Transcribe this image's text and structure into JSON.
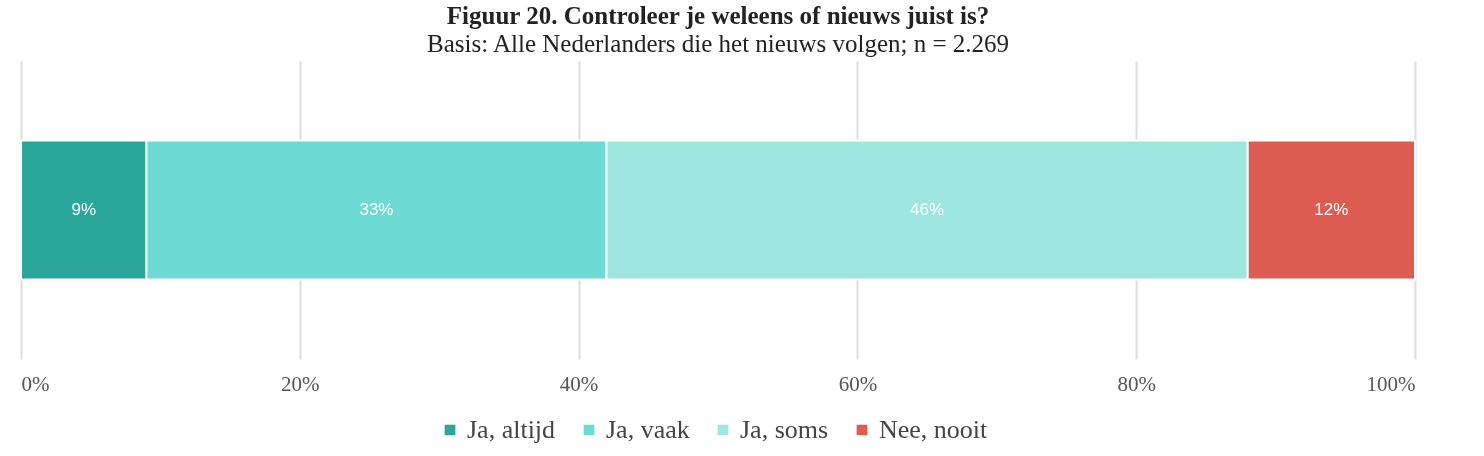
{
  "chart_data": {
    "type": "bar",
    "orientation": "horizontal",
    "stacked": true,
    "title": "Figuur 20. Controleer je weleens of nieuws juist is?",
    "subtitle": "Basis: Alle Nederlanders die het nieuws volgen; n = 2.269",
    "categories": [
      null
    ],
    "series": [
      {
        "name": "Ja, altijd",
        "color": "#2aa69a",
        "values": [
          9
        ]
      },
      {
        "name": "Ja, vaak",
        "color": "#6ddbd3",
        "values": [
          33
        ]
      },
      {
        "name": "Ja, soms",
        "color": "#9ee6e0",
        "values": [
          46
        ]
      },
      {
        "name": "Nee, nooit",
        "color": "#dd5c52",
        "values": [
          12
        ]
      }
    ],
    "value_labels": [
      "9%",
      "33%",
      "46%",
      "12%"
    ],
    "xlim": [
      0,
      100
    ],
    "xticks": [
      {
        "value": 0,
        "label": "0%"
      },
      {
        "value": 20,
        "label": "20%"
      },
      {
        "value": 40,
        "label": "40%"
      },
      {
        "value": 60,
        "label": "60%"
      },
      {
        "value": 80,
        "label": "80%"
      },
      {
        "value": 100,
        "label": "100%"
      }
    ],
    "grid": "x",
    "legend": "bottom",
    "tick_labels": "x"
  }
}
